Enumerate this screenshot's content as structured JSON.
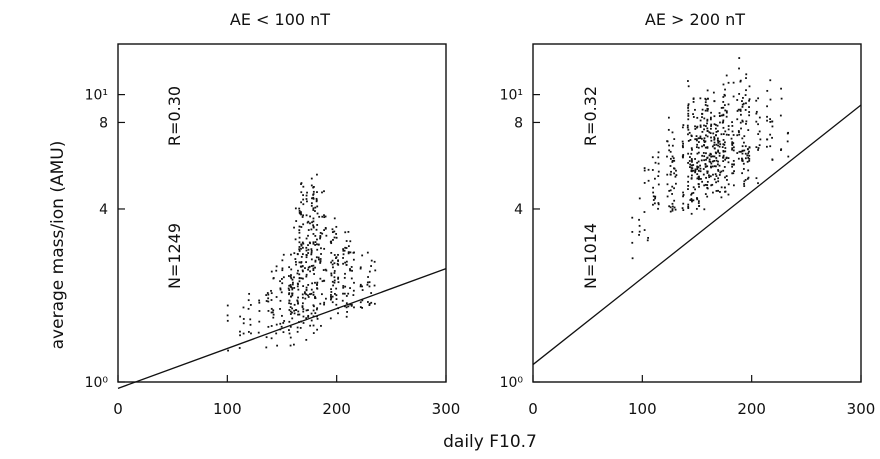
{
  "figure": {
    "ylabel": "average  mass/ion    (AMU)",
    "xlabel": "daily  F10.7"
  },
  "chart_data": [
    {
      "type": "scatter",
      "title": "AE  <  100  nT",
      "xlim": [
        0,
        300
      ],
      "ylim": [
        1,
        15
      ],
      "yscale": "log",
      "x_ticks": [
        "0",
        "100",
        "200",
        "300"
      ],
      "y_ticks": [
        {
          "value": 1,
          "label": "10⁰"
        },
        {
          "value": 4,
          "label": "4"
        },
        {
          "value": 8,
          "label": "8"
        },
        {
          "value": 10,
          "label": "10¹"
        }
      ],
      "annotations": {
        "n": "N=1249",
        "r": "R=0.30"
      },
      "fit_line": {
        "x": [
          0,
          300
        ],
        "y": [
          0.95,
          2.48
        ]
      },
      "x_range_of_points": [
        90,
        240
      ],
      "points_note": "dense cluster of vertical dot columns around F10.7 150-200, mass/ion mostly 1-3 AMU"
    },
    {
      "type": "scatter",
      "title": "AE  >  200  nT",
      "xlim": [
        0,
        300
      ],
      "ylim": [
        1,
        15
      ],
      "yscale": "log",
      "x_ticks": [
        "0",
        "100",
        "200",
        "300"
      ],
      "y_ticks": [
        {
          "value": 1,
          "label": "10⁰"
        },
        {
          "value": 4,
          "label": "4"
        },
        {
          "value": 8,
          "label": "8"
        },
        {
          "value": 10,
          "label": "10¹"
        }
      ],
      "annotations": {
        "n": "N=1014",
        "r": "R=0.32"
      },
      "fit_line": {
        "x": [
          0,
          300
        ],
        "y": [
          1.15,
          9.2
        ]
      },
      "x_range_of_points": [
        90,
        240
      ],
      "points_note": "vertical dot columns spread over F10.7 110-200, mass/ion mostly 1.3-12 AMU"
    }
  ]
}
